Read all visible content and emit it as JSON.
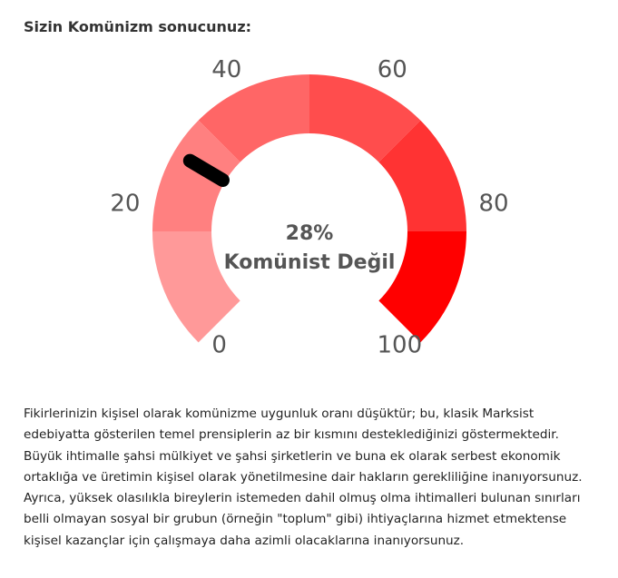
{
  "result": {
    "title": "Sizin Komünizm sonucunuz:",
    "description": "Fikirlerinizin kişisel olarak komünizme uygunluk oranı düşüktür; bu, klasik Marksist edebiyatta gösterilen temel prensiplerin az bir kısmını desteklediğinizi göstermektedir. Büyük ihtimalle şahsi mülkiyet ve şahsi şirketlerin ve buna ek olarak serbest ekonomik ortaklığa ve üretimin kişisel olarak yönetilmesine dair hakların gerekliliğine inanıyorsunuz. Ayrıca, yüksek olasılıkla bireylerin istemeden dahil olmuş olma ihtimalleri bulunan sınırları belli olmayan sosyal bir grubun (örneğin \"toplum\" gibi) ihtiyaçlarına hizmet etmektense kişisel kazançlar için çalışmaya daha azimli olacaklarına inanıyorsunuz."
  },
  "gauge": {
    "value": 28,
    "value_label": "28%",
    "category_label": "Komünist Değil",
    "min": 0,
    "max": 100,
    "tick_labels": [
      "0",
      "20",
      "40",
      "60",
      "80",
      "100"
    ],
    "segment_colors": [
      "#ff9999",
      "#ff8080",
      "#ff6666",
      "#ff4d4d",
      "#ff3333",
      "#ff0000"
    ],
    "needle_color": "#000000",
    "label_color": "#555555"
  }
}
